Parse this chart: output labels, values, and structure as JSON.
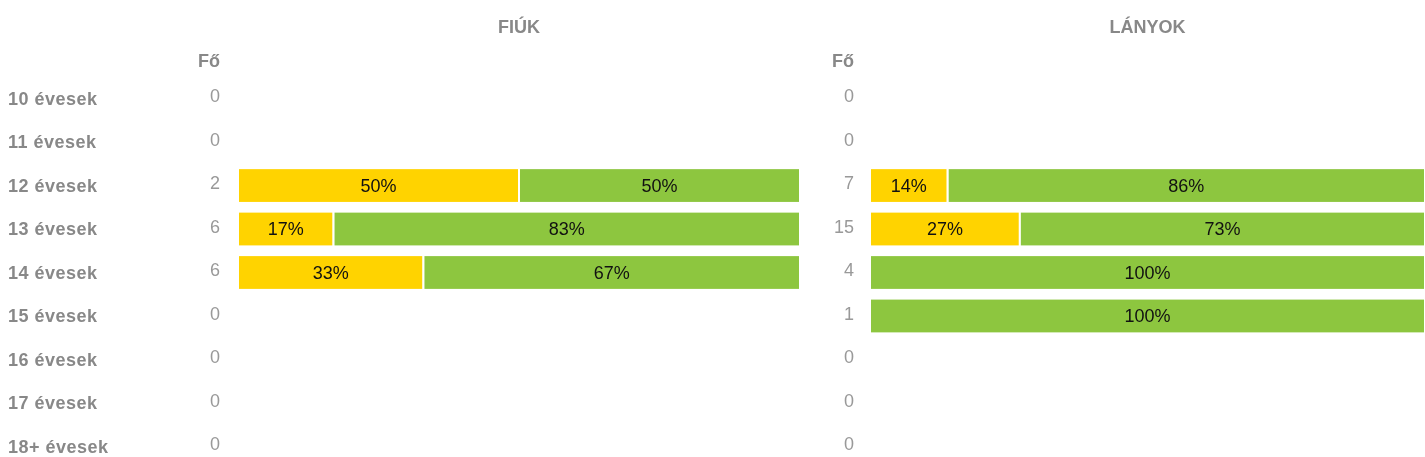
{
  "chart_data": [
    {
      "type": "bar",
      "title": "FIÚK",
      "orientation": "horizontal",
      "stacked": true,
      "tick_labels": "y",
      "categories": [
        "10 évesek",
        "11 évesek",
        "12 évesek",
        "13 évesek",
        "14 évesek",
        "15 évesek",
        "16 évesek",
        "17 évesek",
        "18+ évesek"
      ],
      "series": [
        {
          "color": "#ffd300",
          "values": [
            null,
            null,
            50,
            17,
            33,
            null,
            null,
            null,
            null
          ],
          "value_labels": [
            null,
            null,
            "50%",
            "17%",
            "33%",
            null,
            null,
            null,
            null
          ]
        },
        {
          "color": "#8dc63f",
          "values": [
            null,
            null,
            50,
            83,
            67,
            null,
            null,
            null,
            null
          ],
          "value_labels": [
            null,
            null,
            "50%",
            "83%",
            "67%",
            null,
            null,
            null,
            null
          ]
        }
      ],
      "annotations": [
        "Fő",
        "0",
        "0",
        "2",
        "6",
        "6",
        "0",
        "0",
        "0",
        "0"
      ]
    },
    {
      "type": "bar",
      "title": "LÁNYOK",
      "orientation": "horizontal",
      "stacked": true,
      "tick_labels": false,
      "categories": [
        null,
        null,
        null,
        null,
        null,
        null,
        null,
        null,
        null
      ],
      "series": [
        {
          "color": "#ffd300",
          "values": [
            null,
            null,
            14,
            27,
            null,
            null,
            null,
            null,
            null
          ],
          "value_labels": [
            null,
            null,
            "14%",
            "27%",
            null,
            null,
            null,
            null,
            null
          ]
        },
        {
          "color": "#8dc63f",
          "values": [
            null,
            null,
            86,
            73,
            100,
            100,
            null,
            null,
            null
          ],
          "value_labels": [
            null,
            null,
            "86%",
            "73%",
            "100%",
            "100%",
            null,
            null,
            null
          ]
        }
      ],
      "annotations": [
        "Fő",
        "0",
        "0",
        "7",
        "15",
        "4",
        "1",
        "0",
        "0",
        "0"
      ]
    }
  ]
}
